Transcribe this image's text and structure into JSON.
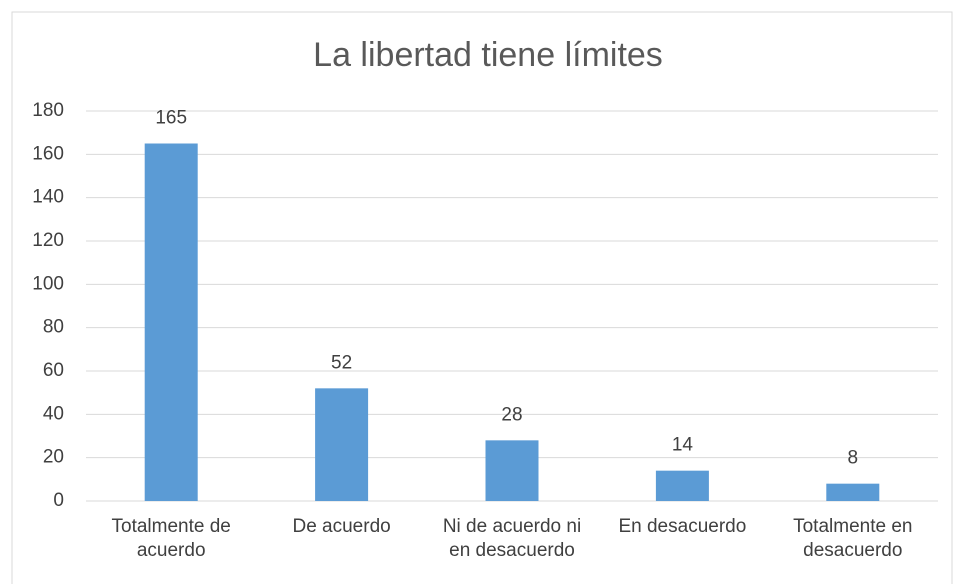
{
  "chart_data": {
    "type": "bar",
    "title": "La libertad tiene límites",
    "categories": [
      "Totalmente de acuerdo",
      "De acuerdo",
      "Ni de acuerdo ni en desacuerdo",
      "En desacuerdo",
      "Totalmente en desacuerdo"
    ],
    "values": [
      165,
      52,
      28,
      14,
      8
    ],
    "color": "#5b9bd5",
    "ylim": [
      0,
      180
    ],
    "yticks": [
      0,
      20,
      40,
      60,
      80,
      100,
      120,
      140,
      160,
      180
    ],
    "grid": true
  }
}
